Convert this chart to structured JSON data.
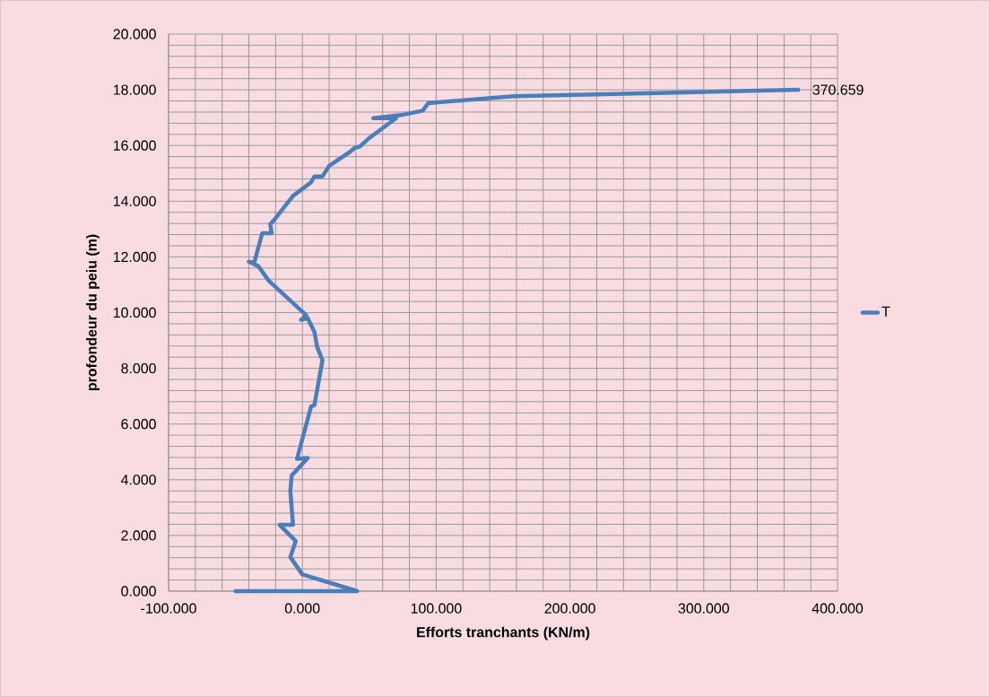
{
  "chart_data": {
    "type": "line",
    "xlabel": "Efforts tranchants (KN/m)",
    "ylabel": "profondeur du peiu (m)",
    "x": [
      -50,
      41,
      0,
      -9,
      -5,
      -17,
      -7,
      -9,
      -8,
      4,
      -4,
      6.5,
      9,
      15,
      11,
      9,
      4,
      -1,
      3,
      -25,
      -33,
      -40,
      -36,
      -30,
      -23,
      -24,
      -20,
      -7,
      6.5,
      9,
      15,
      20,
      35,
      39,
      43,
      49,
      70,
      53,
      73.5,
      90,
      94,
      158,
      370.659
    ],
    "series": [
      {
        "name": "T",
        "color": "#4a7ebb",
        "values": [
          0,
          0,
          0.6,
          1.22,
          1.8,
          2.38,
          2.38,
          3.6,
          4.15,
          4.78,
          4.75,
          6.63,
          6.68,
          8.29,
          8.77,
          9.31,
          9.8,
          9.74,
          9.9,
          11.14,
          11.67,
          11.83,
          11.79,
          12.85,
          12.85,
          13.17,
          13.39,
          14.19,
          14.68,
          14.89,
          14.89,
          15.27,
          15.75,
          15.91,
          15.96,
          16.23,
          16.98,
          16.98,
          17.09,
          17.25,
          17.52,
          17.77,
          18.0
        ]
      }
    ],
    "xlim": [
      -100,
      400
    ],
    "ylim": [
      0,
      20
    ],
    "xticks": [
      {
        "value": -100,
        "label": "-100.000"
      },
      {
        "value": -80,
        "label": null
      },
      {
        "value": -60,
        "label": null
      },
      {
        "value": -40,
        "label": null
      },
      {
        "value": -20,
        "label": null
      },
      {
        "value": 0,
        "label": "0.000"
      },
      {
        "value": 20,
        "label": null
      },
      {
        "value": 40,
        "label": null
      },
      {
        "value": 60,
        "label": null
      },
      {
        "value": 80,
        "label": null
      },
      {
        "value": 100,
        "label": "100.000"
      },
      {
        "value": 120,
        "label": null
      },
      {
        "value": 140,
        "label": null
      },
      {
        "value": 160,
        "label": null
      },
      {
        "value": 180,
        "label": null
      },
      {
        "value": 200,
        "label": "200.000"
      },
      {
        "value": 220,
        "label": null
      },
      {
        "value": 240,
        "label": null
      },
      {
        "value": 260,
        "label": null
      },
      {
        "value": 280,
        "label": null
      },
      {
        "value": 300,
        "label": "300.000"
      },
      {
        "value": 320,
        "label": null
      },
      {
        "value": 340,
        "label": null
      },
      {
        "value": 360,
        "label": null
      },
      {
        "value": 380,
        "label": null
      },
      {
        "value": 400,
        "label": "400.000"
      }
    ],
    "yticks": [
      {
        "value": 0,
        "label": "0.000"
      },
      {
        "value": 0.4,
        "label": null
      },
      {
        "value": 0.8,
        "label": null
      },
      {
        "value": 1.2,
        "label": null
      },
      {
        "value": 1.6,
        "label": null
      },
      {
        "value": 2,
        "label": "2.000"
      },
      {
        "value": 2.4,
        "label": null
      },
      {
        "value": 2.8,
        "label": null
      },
      {
        "value": 3.2,
        "label": null
      },
      {
        "value": 3.6,
        "label": null
      },
      {
        "value": 4,
        "label": "4.000"
      },
      {
        "value": 4.4,
        "label": null
      },
      {
        "value": 4.8,
        "label": null
      },
      {
        "value": 5.2,
        "label": null
      },
      {
        "value": 5.6,
        "label": null
      },
      {
        "value": 6,
        "label": "6.000"
      },
      {
        "value": 6.4,
        "label": null
      },
      {
        "value": 6.8,
        "label": null
      },
      {
        "value": 7.2,
        "label": null
      },
      {
        "value": 7.6,
        "label": null
      },
      {
        "value": 8,
        "label": "8.000"
      },
      {
        "value": 8.4,
        "label": null
      },
      {
        "value": 8.8,
        "label": null
      },
      {
        "value": 9.2,
        "label": null
      },
      {
        "value": 9.6,
        "label": null
      },
      {
        "value": 10,
        "label": "10.000"
      },
      {
        "value": 10.4,
        "label": null
      },
      {
        "value": 10.8,
        "label": null
      },
      {
        "value": 11.2,
        "label": null
      },
      {
        "value": 11.6,
        "label": null
      },
      {
        "value": 12,
        "label": "12.000"
      },
      {
        "value": 12.4,
        "label": null
      },
      {
        "value": 12.8,
        "label": null
      },
      {
        "value": 13.2,
        "label": null
      },
      {
        "value": 13.6,
        "label": null
      },
      {
        "value": 14,
        "label": "14.000"
      },
      {
        "value": 14.4,
        "label": null
      },
      {
        "value": 14.8,
        "label": null
      },
      {
        "value": 15.2,
        "label": null
      },
      {
        "value": 15.6,
        "label": null
      },
      {
        "value": 16,
        "label": "16.000"
      },
      {
        "value": 16.4,
        "label": null
      },
      {
        "value": 16.8,
        "label": null
      },
      {
        "value": 17.2,
        "label": null
      },
      {
        "value": 17.6,
        "label": null
      },
      {
        "value": 18,
        "label": "18.000"
      },
      {
        "value": 18.4,
        "label": null
      },
      {
        "value": 18.8,
        "label": null
      },
      {
        "value": 19.2,
        "label": null
      },
      {
        "value": 19.6,
        "label": null
      },
      {
        "value": 20,
        "label": "20.000"
      }
    ],
    "grid": true,
    "legend": "right",
    "annotations": [
      {
        "text": "370.659",
        "x": 370.659,
        "y": 18
      }
    ]
  }
}
